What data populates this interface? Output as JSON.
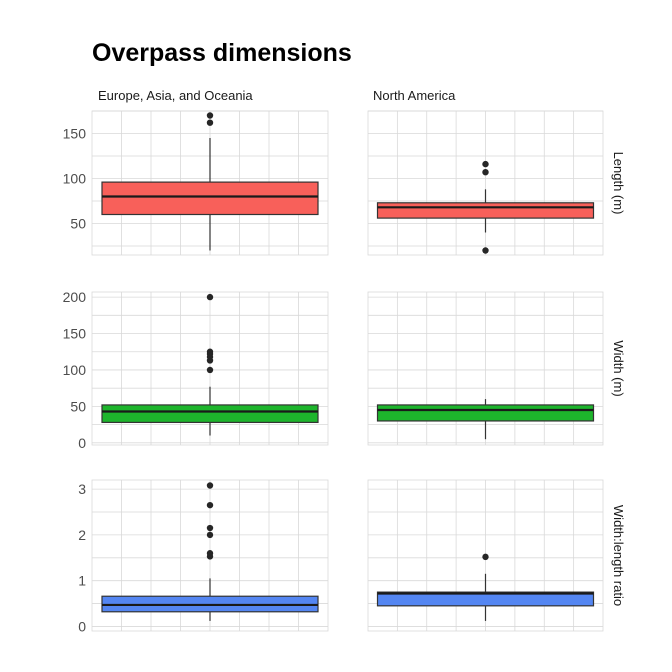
{
  "chart_data": {
    "type": "boxplot",
    "title": "Overpass dimensions",
    "columns": [
      "Europe, Asia, and Oceania",
      "North America"
    ],
    "rows": [
      {
        "label": "Length (m)",
        "color": "#F8605A",
        "ylim": [
          15,
          175
        ],
        "ticks": [
          50,
          100,
          150
        ],
        "boxes": [
          {
            "whisker_low": 20,
            "q1": 60,
            "median": 80,
            "q3": 96,
            "whisker_high": 145,
            "outliers": [
              162,
              170
            ]
          },
          {
            "whisker_low": 40,
            "q1": 56,
            "median": 68,
            "q3": 73,
            "whisker_high": 88,
            "outliers": [
              20,
              107,
              116
            ]
          }
        ]
      },
      {
        "label": "Width (m)",
        "color": "#1DB52C",
        "ylim": [
          -3,
          207
        ],
        "ticks": [
          0,
          50,
          100,
          150,
          200
        ],
        "boxes": [
          {
            "whisker_low": 10,
            "q1": 28,
            "median": 43,
            "q3": 52,
            "whisker_high": 77,
            "outliers": [
              100,
              113,
              118,
              122,
              125,
              200
            ]
          },
          {
            "whisker_low": 5,
            "q1": 30,
            "median": 45,
            "q3": 52,
            "whisker_high": 60,
            "outliers": []
          }
        ]
      },
      {
        "label": "Width:length ratio",
        "color": "#5486F2",
        "ylim": [
          -0.1,
          3.2
        ],
        "ticks": [
          0,
          1,
          2,
          3
        ],
        "boxes": [
          {
            "whisker_low": 0.12,
            "q1": 0.32,
            "median": 0.47,
            "q3": 0.66,
            "whisker_high": 1.05,
            "outliers": [
              1.53,
              1.6,
              2.0,
              2.15,
              2.65,
              3.08
            ]
          },
          {
            "whisker_low": 0.12,
            "q1": 0.45,
            "median": 0.72,
            "q3": 0.75,
            "whisker_high": 1.15,
            "outliers": [
              1.52
            ]
          }
        ]
      }
    ],
    "grid": true
  }
}
